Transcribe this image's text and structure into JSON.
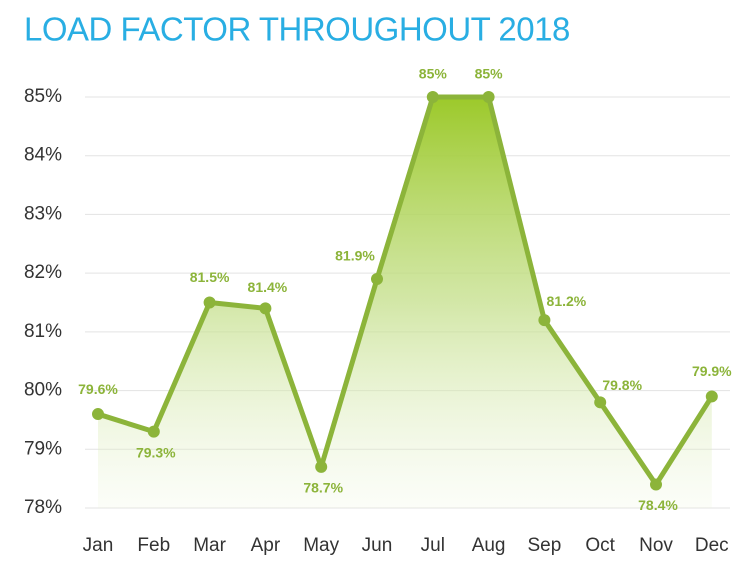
{
  "chart_data": {
    "type": "line",
    "title": "LOAD FACTOR THROUGHOUT 2018",
    "categories": [
      "Jan",
      "Feb",
      "Mar",
      "Apr",
      "May",
      "Jun",
      "Jul",
      "Aug",
      "Sep",
      "Oct",
      "Nov",
      "Dec"
    ],
    "series": [
      {
        "color": "#8cb43a",
        "values": [
          79.6,
          79.3,
          81.5,
          81.4,
          78.7,
          81.9,
          85,
          85,
          81.2,
          79.8,
          78.4,
          79.9
        ],
        "value_labels": [
          "79.6%",
          "79.3%",
          "81.5%",
          "81.4%",
          "78.7%",
          "81.9%",
          "85%",
          "85%",
          "81.2%",
          "79.8%",
          "78.4%",
          "79.9%"
        ]
      }
    ],
    "ylim": [
      78,
      85
    ],
    "yticks": [
      {
        "value": 78,
        "label": "78%"
      },
      {
        "value": 79,
        "label": "79%"
      },
      {
        "value": 80,
        "label": "80%"
      },
      {
        "value": 81,
        "label": "81%"
      },
      {
        "value": 82,
        "label": "82%"
      },
      {
        "value": 83,
        "label": "83%"
      },
      {
        "value": 84,
        "label": "84%"
      },
      {
        "value": 85,
        "label": "85%"
      }
    ],
    "grid": true
  }
}
